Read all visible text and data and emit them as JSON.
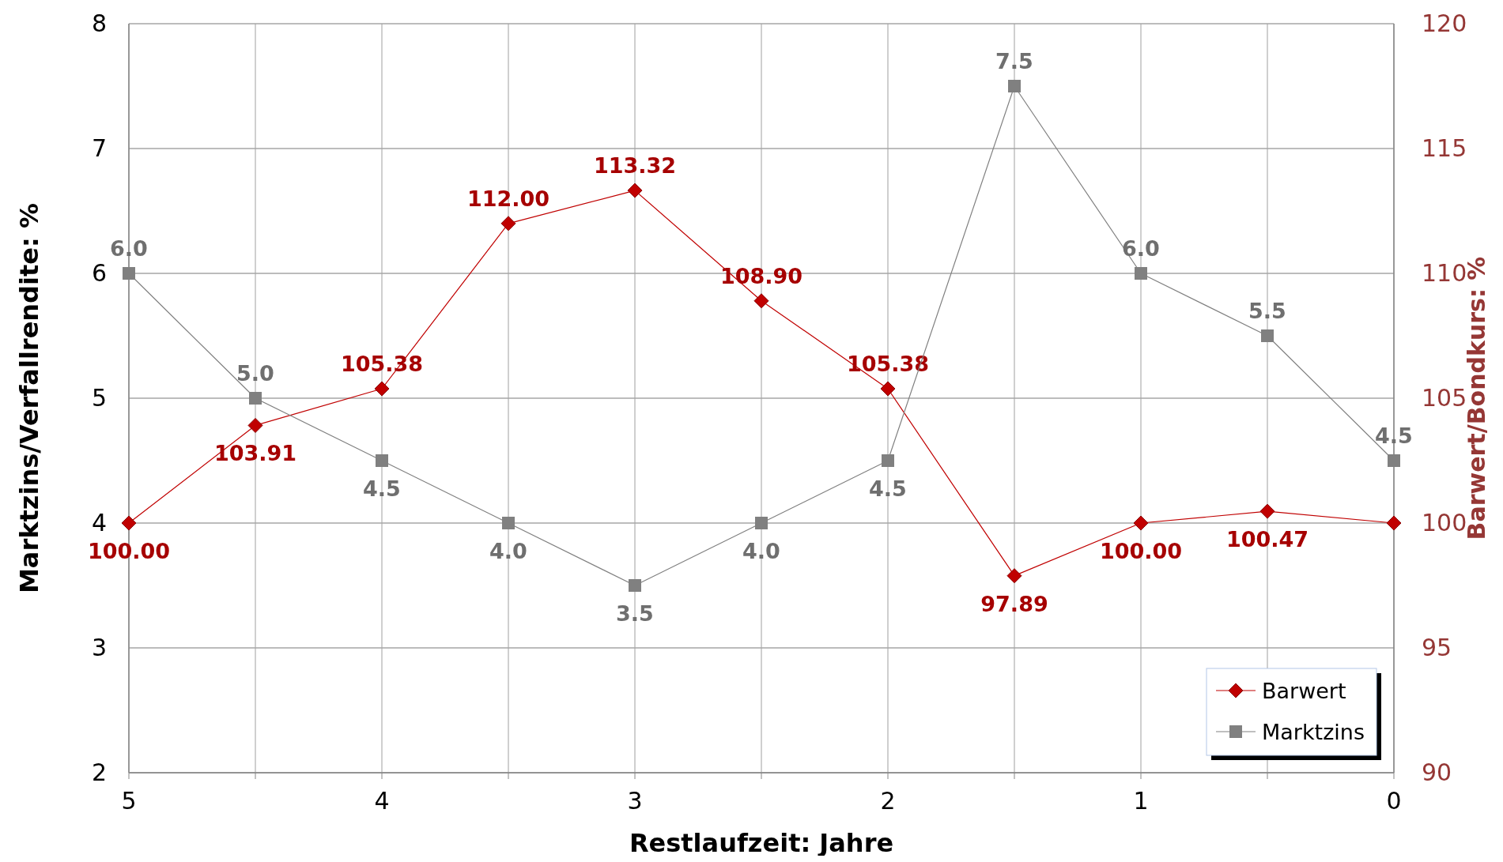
{
  "chart_data": {
    "type": "line",
    "xlabel": "Restlaufzeit: Jahre",
    "ylabel": "Marktzins/Verfallrendite: %",
    "y2label": "Barwert/Bondkurs: %",
    "x": [
      5,
      4.5,
      4,
      3.5,
      3,
      2.5,
      2,
      1.5,
      1,
      0.5,
      0
    ],
    "xlim": [
      5,
      0
    ],
    "xticks": [
      5,
      {
        "value": 4.5,
        "label": null
      },
      4,
      {
        "value": 3.5,
        "label": null
      },
      3,
      {
        "value": 2.5,
        "label": null
      },
      2,
      {
        "value": 1.5,
        "label": null
      },
      1,
      {
        "value": 0.5,
        "label": null
      },
      0
    ],
    "ylim": [
      2,
      8
    ],
    "yticks": [
      2,
      3,
      4,
      5,
      6,
      7,
      8
    ],
    "y2lim": [
      90,
      120
    ],
    "y2ticks": [
      90,
      95,
      100,
      105,
      110,
      115,
      120
    ],
    "grid": true,
    "legend": "bottom right",
    "series": [
      {
        "name": "Barwert",
        "color": "#c00000",
        "axis": "y2",
        "marker": "diamond",
        "values": [
          100.0,
          103.91,
          105.38,
          112.0,
          113.32,
          108.9,
          105.38,
          97.89,
          100.0,
          100.47,
          100.0
        ],
        "value_labels": [
          "100.00",
          "103.91",
          "105.38",
          "112.00",
          "113.32",
          "108.90",
          "105.38",
          "97.89",
          "100.00",
          "100.47",
          null
        ]
      },
      {
        "name": "Marktzins",
        "color": "#808080",
        "marker": "square",
        "values": [
          6.0,
          5.0,
          4.5,
          4.0,
          3.5,
          4.0,
          4.5,
          7.5,
          6.0,
          5.5,
          4.5
        ],
        "value_labels": [
          "6.0",
          "5.0",
          "4.5",
          "4.0",
          "3.5",
          "4.0",
          "4.5",
          "7.5",
          "6.0",
          "5.5",
          "4.5"
        ]
      }
    ]
  }
}
